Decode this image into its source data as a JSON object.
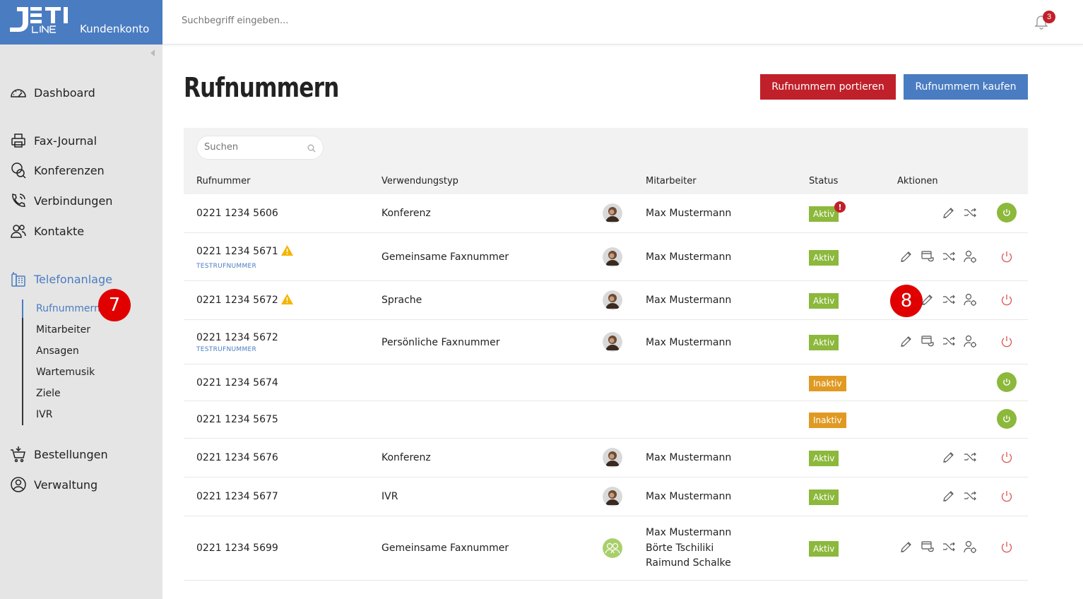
{
  "brand": {
    "logo_text": "JETI LINE",
    "account_label": "Kundenkonto"
  },
  "topbar": {
    "search_placeholder": "Suchbegriff eingeben...",
    "notification_count": "3"
  },
  "sidebar": {
    "items": [
      {
        "label": "Dashboard",
        "icon": "speedometer-icon"
      },
      {
        "label": "Fax-Journal",
        "icon": "fax-icon"
      },
      {
        "label": "Konferenzen",
        "icon": "conference-icon"
      },
      {
        "label": "Verbindungen",
        "icon": "phone-call-icon"
      },
      {
        "label": "Kontakte",
        "icon": "contacts-icon"
      },
      {
        "label": "Telefonanlage",
        "icon": "phone-system-icon",
        "active": true
      },
      {
        "label": "Bestellungen",
        "icon": "cart-icon"
      },
      {
        "label": "Verwaltung",
        "icon": "user-admin-icon"
      }
    ],
    "subitems": [
      "Rufnummern",
      "Mitarbeiter",
      "Ansagen",
      "Wartemusik",
      "Ziele",
      "IVR"
    ],
    "active_subitem": "Rufnummern"
  },
  "markers": {
    "m7": "7",
    "m8": "8"
  },
  "page": {
    "title": "Rufnummern",
    "btn_port": "Rufnummern portieren",
    "btn_buy": "Rufnummern kaufen",
    "table_search_placeholder": "Suchen"
  },
  "table": {
    "columns": [
      "Rufnummer",
      "Verwendungstyp",
      "Mitarbeiter",
      "Status",
      "Aktionen"
    ],
    "rows": [
      {
        "number": "0221 1234 5606",
        "type": "Konferenz",
        "employees": [
          "Max Mustermann"
        ],
        "status": "Aktiv"
      },
      {
        "number": "0221 1234 5671",
        "sub": "TESTRUFNUMMER",
        "type": "Gemeinsame Faxnummer",
        "employees": [
          "Max Mustermann"
        ],
        "status": "Aktiv"
      },
      {
        "number": "0221 1234 5672",
        "type": "Sprache",
        "employees": [
          "Max Mustermann"
        ],
        "status": "Aktiv"
      },
      {
        "number": "0221 1234 5672",
        "sub": "TESTRUFNUMMER",
        "type": "Persönliche Faxnummer",
        "employees": [
          "Max Mustermann"
        ],
        "status": "Aktiv"
      },
      {
        "number": "0221 1234 5674",
        "status": "Inaktiv"
      },
      {
        "number": "0221 1234 5675",
        "status": "Inaktiv"
      },
      {
        "number": "0221 1234 5676",
        "type": "Konferenz",
        "employees": [
          "Max Mustermann"
        ],
        "status": "Aktiv"
      },
      {
        "number": "0221 1234 5677",
        "type": "IVR",
        "employees": [
          "Max Mustermann"
        ],
        "status": "Aktiv"
      },
      {
        "number": "0221 1234 5699",
        "type": "Gemeinsame Faxnummer",
        "employees": [
          "Max Mustermann",
          "Börte Tschiliki",
          "Raimund Schalke"
        ],
        "status": "Aktiv"
      }
    ],
    "status_alert": "!"
  },
  "colors": {
    "brand_blue": "#4a7cc2",
    "brand_red": "#c0202a",
    "active_green": "#8cb83c",
    "inactive_orange": "#e09a23",
    "marker_red": "#e00000"
  }
}
